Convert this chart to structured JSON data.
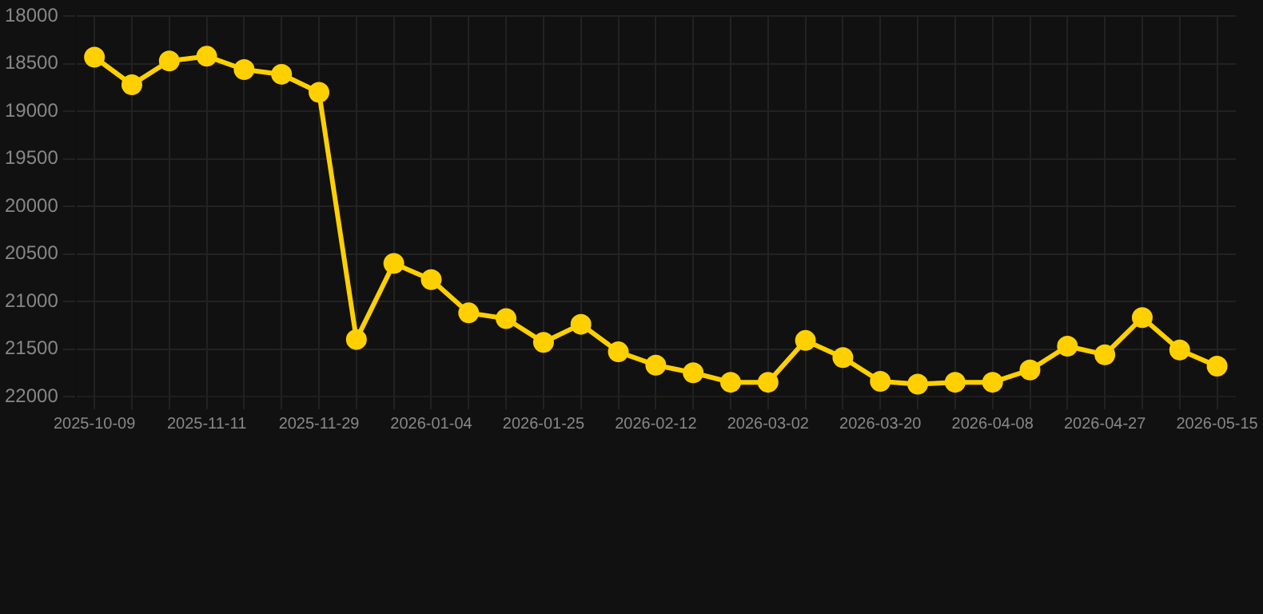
{
  "chart_data": {
    "type": "line",
    "categories": [
      "2025-10-09",
      null,
      null,
      "2025-11-11",
      null,
      null,
      "2025-11-29",
      null,
      null,
      "2026-01-04",
      null,
      null,
      "2026-01-25",
      null,
      null,
      "2026-02-12",
      null,
      null,
      "2026-03-02",
      null,
      null,
      "2026-03-20",
      null,
      null,
      "2026-04-08",
      null,
      null,
      "2026-04-27",
      null,
      null,
      "2026-05-15"
    ],
    "series": [
      {
        "color": "#ffd000",
        "values": [
          18430,
          18720,
          18470,
          18420,
          18560,
          18610,
          18800,
          21400,
          20600,
          20770,
          21120,
          21180,
          21430,
          21240,
          21530,
          21670,
          21750,
          21850,
          21850,
          21410,
          21590,
          21840,
          21870,
          21850,
          21850,
          21720,
          21470,
          21560,
          21170,
          21510,
          21680
        ]
      }
    ],
    "ylim": [
      22000,
      18000
    ],
    "yticks": [
      18000,
      18500,
      19000,
      19500,
      20000,
      20500,
      21000,
      21500,
      22000
    ],
    "grid": true,
    "legend": false,
    "marker": "circle",
    "line_style": "solid"
  }
}
